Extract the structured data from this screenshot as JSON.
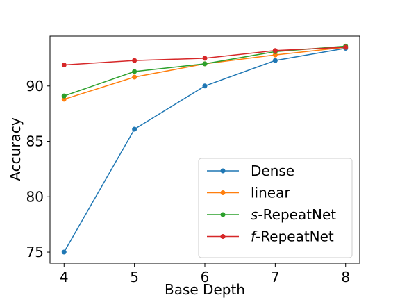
{
  "chart_data": {
    "type": "line",
    "title": "",
    "xlabel": "Base Depth",
    "ylabel": "Accuracy",
    "x": [
      4,
      5,
      6,
      7,
      8
    ],
    "xlim": [
      3.8,
      8.2
    ],
    "ylim": [
      74.0,
      94.5
    ],
    "xticks": [
      4,
      5,
      6,
      7,
      8
    ],
    "yticks": [
      75,
      80,
      85,
      90
    ],
    "grid": false,
    "legend_position": "lower-right",
    "series": [
      {
        "name": "Dense",
        "name_prefix": "",
        "name_suffix": "Dense",
        "color": "#1f77b4",
        "values": [
          75.0,
          86.1,
          90.0,
          92.3,
          93.4
        ]
      },
      {
        "name": "linear",
        "name_prefix": "",
        "name_suffix": "linear",
        "color": "#ff7f0e",
        "values": [
          88.8,
          90.8,
          92.0,
          92.8,
          93.5
        ]
      },
      {
        "name": "s-RepeatNet",
        "name_prefix": "s",
        "name_suffix": "-RepeatNet",
        "color": "#2ca02c",
        "values": [
          89.1,
          91.3,
          92.0,
          93.1,
          93.6
        ]
      },
      {
        "name": "f-RepeatNet",
        "name_prefix": "f",
        "name_suffix": "-RepeatNet",
        "color": "#d62728",
        "values": [
          91.9,
          92.3,
          92.5,
          93.2,
          93.5
        ]
      }
    ]
  }
}
